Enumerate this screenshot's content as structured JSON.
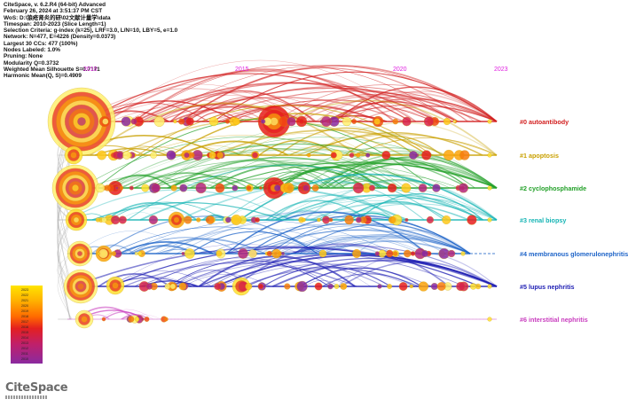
{
  "meta": {
    "lines": [
      "CiteSpace, v. 6.2.R4 (64-bit) Advanced",
      "February 26, 2024 at 3:51:37 PM CST",
      "WoS: D:\\狼疮肾炎的研\\02文献计量学\\data",
      "Timespan: 2010-2023 (Slice Length=1)",
      "Selection Criteria: g-index (k=25), LRF=3.0, L/N=10, LBY=5, e=1.0",
      "Network: N=477, E=4226 (Density=0.0373)",
      "Largest 30 CCs: 477 (100%)",
      "Nodes Labeled: 1.0%",
      "Pruning: None",
      "Modularity Q=0.3732",
      "Weighted Mean Silhouette S=0.7171",
      "Harmonic Mean(Q, S)=0.4909"
    ]
  },
  "timeline": {
    "years": [
      "2010",
      "2015",
      "2020",
      "2023"
    ],
    "clusters": [
      {
        "label": "#0 autoantibody",
        "color": "#d21e1e"
      },
      {
        "label": "#1 apoptosis",
        "color": "#c9a000"
      },
      {
        "label": "#2 cyclophosphamide",
        "color": "#22a028"
      },
      {
        "label": "#3 renal biopsy",
        "color": "#14b4b4"
      },
      {
        "label": "#4 membranous glomerulonephritis",
        "color": "#1e64c8"
      },
      {
        "label": "#5 lupus nephritis",
        "color": "#2020b4"
      },
      {
        "label": "#6 interstitial nephritis",
        "color": "#c83cbe"
      }
    ]
  },
  "legend": {
    "years": [
      "2023",
      "2022",
      "2021",
      "2020",
      "2019",
      "2018",
      "2017",
      "2016",
      "2015",
      "2014",
      "2013",
      "2012",
      "2011",
      "2010"
    ]
  },
  "logo": {
    "text": "CiteSpace"
  }
}
